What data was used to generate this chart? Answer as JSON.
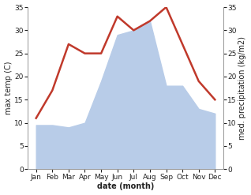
{
  "months": [
    "Jan",
    "Feb",
    "Mar",
    "Apr",
    "May",
    "Jun",
    "Jul",
    "Aug",
    "Sep",
    "Oct",
    "Nov",
    "Dec"
  ],
  "temperature": [
    11,
    17,
    27,
    25,
    25,
    33,
    30,
    32,
    35,
    27,
    19,
    15
  ],
  "precipitation": [
    9.5,
    9.5,
    9,
    10,
    19,
    29,
    30,
    32,
    18,
    18,
    13,
    12
  ],
  "temp_color": "#c0392b",
  "precip_color": "#b8cce8",
  "ylim": [
    0,
    35
  ],
  "yticks": [
    0,
    5,
    10,
    15,
    20,
    25,
    30,
    35
  ],
  "ylabel_left": "max temp (C)",
  "ylabel_right": "med. precipitation (kg/m2)",
  "xlabel": "date (month)",
  "bg_color": "#ffffff",
  "spine_color": "#999999",
  "tick_color": "#222222",
  "label_fontsize": 7,
  "tick_fontsize": 6.5,
  "line_width": 1.8
}
